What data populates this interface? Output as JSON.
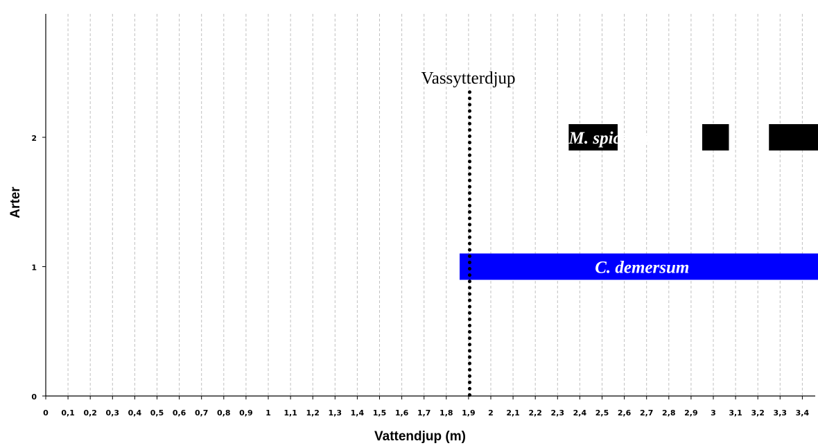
{
  "chart_data": {
    "type": "bar",
    "orientation": "horizontal-ranges",
    "xlabel": "Vattendjup (m)",
    "ylabel": "Arter",
    "xlim": [
      0,
      3.45
    ],
    "ylim": [
      0,
      2
    ],
    "x_ticks": [
      {
        "value": 0,
        "label": "0"
      },
      {
        "value": 0.1,
        "label": "0,1"
      },
      {
        "value": 0.2,
        "label": "0,2"
      },
      {
        "value": 0.3,
        "label": "0,3"
      },
      {
        "value": 0.4,
        "label": "0,4"
      },
      {
        "value": 0.5,
        "label": "0,5"
      },
      {
        "value": 0.6,
        "label": "0,6"
      },
      {
        "value": 0.7,
        "label": "0,7"
      },
      {
        "value": 0.8,
        "label": "0,8"
      },
      {
        "value": 0.9,
        "label": "0,9"
      },
      {
        "value": 1.0,
        "label": "1"
      },
      {
        "value": 1.1,
        "label": "1,1"
      },
      {
        "value": 1.2,
        "label": "1,2"
      },
      {
        "value": 1.3,
        "label": "1,3"
      },
      {
        "value": 1.4,
        "label": "1,4"
      },
      {
        "value": 1.5,
        "label": "1,5"
      },
      {
        "value": 1.6,
        "label": "1,6"
      },
      {
        "value": 1.7,
        "label": "1,7"
      },
      {
        "value": 1.8,
        "label": "1,8"
      },
      {
        "value": 1.9,
        "label": "1,9"
      },
      {
        "value": 2.0,
        "label": "2"
      },
      {
        "value": 2.1,
        "label": "2,1"
      },
      {
        "value": 2.2,
        "label": "2,2"
      },
      {
        "value": 2.3,
        "label": "2,3"
      },
      {
        "value": 2.4,
        "label": "2,4"
      },
      {
        "value": 2.5,
        "label": "2,5"
      },
      {
        "value": 2.6,
        "label": "2,6"
      },
      {
        "value": 2.7,
        "label": "2,7"
      },
      {
        "value": 2.8,
        "label": "2,8"
      },
      {
        "value": 2.9,
        "label": "2,9"
      },
      {
        "value": 3.0,
        "label": "3"
      },
      {
        "value": 3.1,
        "label": "3,1"
      },
      {
        "value": 3.2,
        "label": "3,2"
      },
      {
        "value": 3.3,
        "label": "3,3"
      },
      {
        "value": 3.4,
        "label": "3,4"
      }
    ],
    "y_ticks": [
      {
        "value": 0,
        "label": "0"
      },
      {
        "value": 1,
        "label": "1"
      },
      {
        "value": 2,
        "label": "2"
      }
    ],
    "grid": "vertical dashed",
    "series": [
      {
        "name": "M. spicatum",
        "y": 2,
        "color": "#000000",
        "ranges": [
          [
            2.35,
            2.57
          ],
          [
            2.95,
            3.07
          ],
          [
            3.25,
            3.48
          ]
        ],
        "label_x": 2.55
      },
      {
        "name": "C. demersum",
        "y": 1,
        "color": "#0000ff",
        "ranges": [
          [
            1.86,
            3.48
          ]
        ],
        "label_x": 2.68
      }
    ],
    "reference_line": {
      "label": "Vassytterdjup",
      "x": 1.905,
      "y_top": 2.35,
      "style": "dotted",
      "color": "#000000"
    }
  }
}
